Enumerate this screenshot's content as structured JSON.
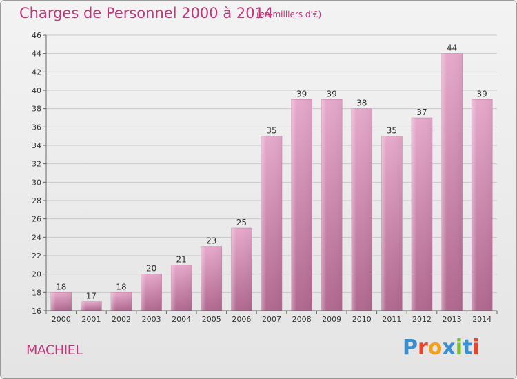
{
  "header": {
    "title": "Charges de Personnel 2000 à 2014",
    "subtitle": "(en milliers d'€)"
  },
  "footer": {
    "commune": "MACHIEL",
    "logo_text": "Proxiti"
  },
  "colors": {
    "bar_fill": "#d98bb5",
    "title": "#c4357a",
    "logo": [
      "#3a8fd0",
      "#e8452a",
      "#f2a019",
      "#3a8fd0",
      "#7bbf2a",
      "#3a8fd0",
      "#e8452a"
    ]
  },
  "chart_data": {
    "type": "bar",
    "title": "Charges de Personnel 2000 à 2014",
    "subtitle": "(en milliers d'€)",
    "categories": [
      "2000",
      "2001",
      "2002",
      "2003",
      "2004",
      "2005",
      "2006",
      "2007",
      "2008",
      "2009",
      "2010",
      "2011",
      "2012",
      "2013",
      "2014"
    ],
    "values": [
      18,
      17,
      18,
      20,
      21,
      23,
      25,
      35,
      39,
      39,
      38,
      35,
      37,
      44,
      39
    ],
    "ylim": [
      16,
      46
    ],
    "yticks": [
      16,
      18,
      20,
      22,
      24,
      26,
      28,
      30,
      32,
      34,
      36,
      38,
      40,
      42,
      44,
      46
    ],
    "grid": true,
    "data_labels": true
  }
}
